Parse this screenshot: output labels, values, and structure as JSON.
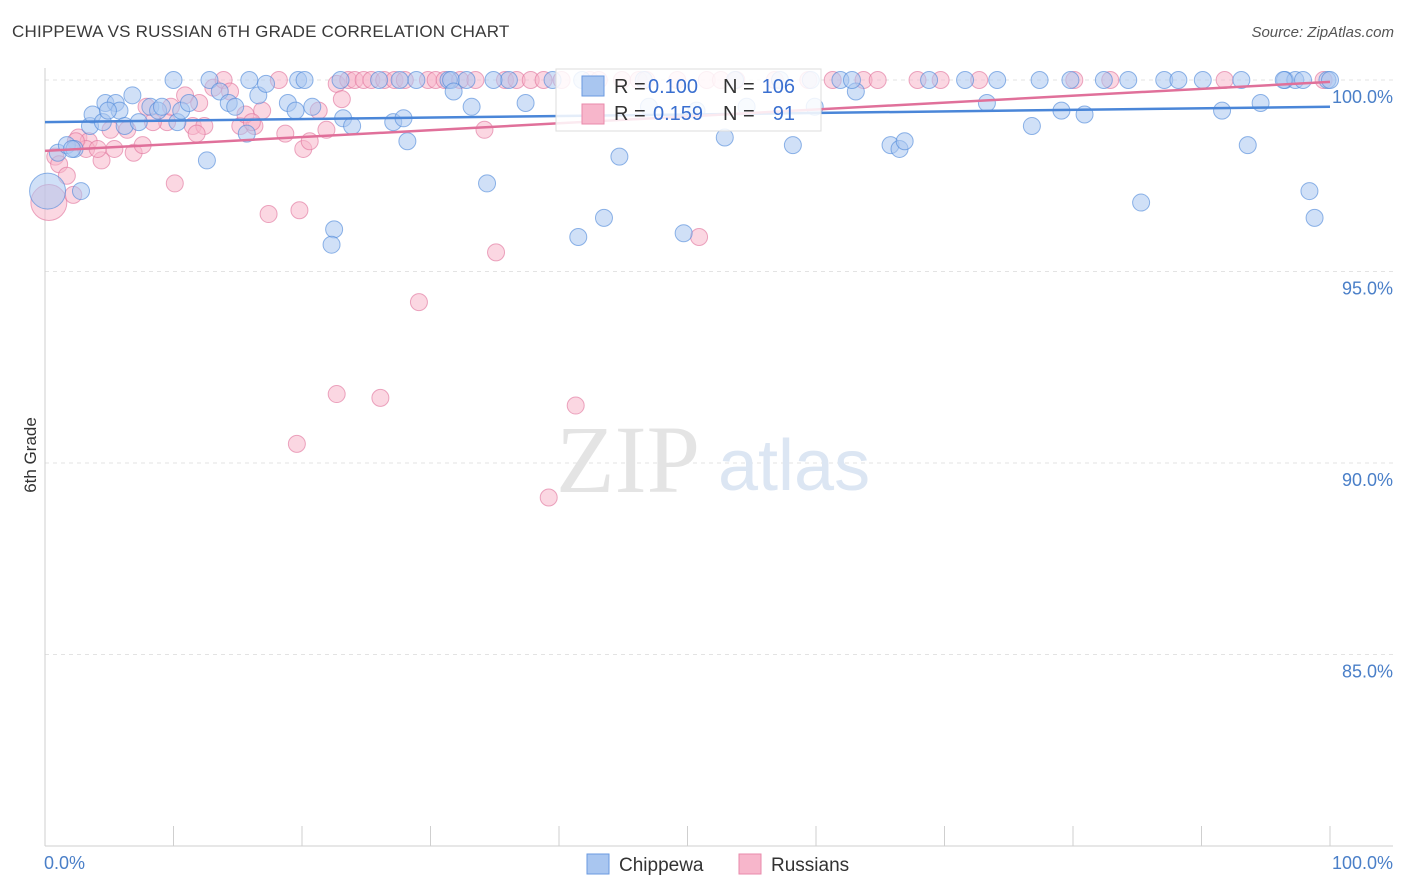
{
  "title": "CHIPPEWA VS RUSSIAN 6TH GRADE CORRELATION CHART",
  "source": "Source: ZipAtlas.com",
  "watermark": {
    "zip": "ZIP",
    "atlas": "atlas"
  },
  "legend_top": {
    "rows": [
      {
        "r_label": "R =",
        "r_value": "0.100",
        "n_label": "N =",
        "n_value": "106",
        "color": "#8fb4e8"
      },
      {
        "r_label": "R =",
        "r_value": "0.159",
        "n_label": "N =",
        "n_value": "91",
        "color": "#f4a8c0"
      }
    ]
  },
  "legend_bottom": [
    {
      "label": "Chippewa",
      "color": "#8fb4e8"
    },
    {
      "label": "Russians",
      "color": "#f4a8c0"
    }
  ],
  "chart_data": {
    "type": "scatter",
    "title": "CHIPPEWA VS RUSSIAN 6TH GRADE CORRELATION CHART",
    "xlabel": "",
    "ylabel": "6th Grade",
    "xlim": [
      0,
      100
    ],
    "ylim": [
      80.5,
      100.9
    ],
    "x_tick_labels": [
      "0.0%",
      "100.0%"
    ],
    "y_ticks": [
      85,
      90,
      95,
      100
    ],
    "y_tick_labels": [
      "85.0%",
      "90.0%",
      "95.0%",
      "100.0%"
    ],
    "grid": true,
    "series": [
      {
        "name": "Chippewa",
        "color": "#4a86d8",
        "fill": "#a9c6f0",
        "trend": {
          "x": [
            0,
            100
          ],
          "y": [
            98.9,
            99.3
          ]
        },
        "points": [
          [
            1,
            98.1
          ],
          [
            1.7,
            98.3
          ],
          [
            2.3,
            98.2
          ],
          [
            2.8,
            97.1
          ],
          [
            3.5,
            98.8
          ],
          [
            3.7,
            99.1
          ],
          [
            4.5,
            98.9
          ],
          [
            4.7,
            99.4
          ],
          [
            5.5,
            99.4
          ],
          [
            5.8,
            99.2
          ],
          [
            6.2,
            98.8
          ],
          [
            6.8,
            99.6
          ],
          [
            7.3,
            98.9
          ],
          [
            8.2,
            99.3
          ],
          [
            8.8,
            99.2
          ],
          [
            10,
            100
          ],
          [
            10.3,
            98.9
          ],
          [
            10.6,
            99.2
          ],
          [
            11.2,
            99.4
          ],
          [
            12.8,
            100
          ],
          [
            12.6,
            97.9
          ],
          [
            13.6,
            99.7
          ],
          [
            14.3,
            99.4
          ],
          [
            15.9,
            100
          ],
          [
            15.7,
            98.6
          ],
          [
            16.6,
            99.6
          ],
          [
            17.2,
            99.9
          ],
          [
            19.7,
            100
          ],
          [
            18.9,
            99.4
          ],
          [
            20.2,
            100
          ],
          [
            19.5,
            99.2
          ],
          [
            22.5,
            96.1
          ],
          [
            22.3,
            95.7
          ],
          [
            23,
            100
          ],
          [
            23.2,
            99
          ],
          [
            23.9,
            98.8
          ],
          [
            26,
            100
          ],
          [
            27.1,
            98.9
          ],
          [
            27.9,
            99
          ],
          [
            28.2,
            98.4
          ],
          [
            28.9,
            100
          ],
          [
            31.4,
            100
          ],
          [
            31.6,
            100
          ],
          [
            31.8,
            99.7
          ],
          [
            32.8,
            100
          ],
          [
            33.2,
            99.3
          ],
          [
            34.4,
            97.3
          ],
          [
            36.1,
            100
          ],
          [
            37.4,
            99.4
          ],
          [
            39.5,
            100
          ],
          [
            41.5,
            95.9
          ],
          [
            41.8,
            100
          ],
          [
            43.5,
            96.4
          ],
          [
            44.7,
            98
          ],
          [
            47,
            99.3
          ],
          [
            46.6,
            100
          ],
          [
            49.7,
            96
          ],
          [
            50.7,
            99.2
          ],
          [
            52.9,
            98.5
          ],
          [
            53.7,
            100
          ],
          [
            54.6,
            99.3
          ],
          [
            57.2,
            100
          ],
          [
            58.2,
            98.3
          ],
          [
            59.6,
            100
          ],
          [
            59.9,
            99.3
          ],
          [
            61.9,
            100
          ],
          [
            63.1,
            99.7
          ],
          [
            65.8,
            98.3
          ],
          [
            66.5,
            98.2
          ],
          [
            66.9,
            98.4
          ],
          [
            68.8,
            100
          ],
          [
            71.6,
            100
          ],
          [
            74.1,
            100
          ],
          [
            73.3,
            99.4
          ],
          [
            77.4,
            100
          ],
          [
            76.8,
            98.8
          ],
          [
            79.1,
            99.2
          ],
          [
            80.9,
            99.1
          ],
          [
            79.8,
            100
          ],
          [
            82.4,
            100
          ],
          [
            84.3,
            100
          ],
          [
            85.3,
            96.8
          ],
          [
            87.1,
            100
          ],
          [
            88.2,
            100
          ],
          [
            90.1,
            100
          ],
          [
            91.6,
            99.2
          ],
          [
            93.1,
            100
          ],
          [
            93.6,
            98.3
          ],
          [
            94.6,
            99.4
          ],
          [
            96.5,
            100
          ],
          [
            97.3,
            100
          ],
          [
            97.9,
            100
          ],
          [
            98.4,
            97.1
          ],
          [
            98.8,
            96.4
          ],
          [
            99.8,
            100
          ],
          [
            100,
            100
          ],
          [
            2.1,
            98.2
          ],
          [
            4.9,
            99.2
          ],
          [
            9.1,
            99.3
          ],
          [
            14.8,
            99.3
          ],
          [
            20.8,
            99.3
          ],
          [
            27.6,
            100
          ],
          [
            34.9,
            100
          ],
          [
            62.8,
            100
          ],
          [
            0.2,
            97.1
          ],
          [
            96.4,
            100
          ]
        ]
      },
      {
        "name": "Russians",
        "color": "#e0709a",
        "fill": "#f7b6cb",
        "trend": {
          "x": [
            0,
            100
          ],
          "y": [
            98.15,
            99.95
          ]
        },
        "points": [
          [
            0.3,
            96.8
          ],
          [
            0.8,
            98.0
          ],
          [
            1.1,
            97.8
          ],
          [
            1.7,
            97.5
          ],
          [
            2.2,
            97
          ],
          [
            2.6,
            98.5
          ],
          [
            3.4,
            98.4
          ],
          [
            3.2,
            98.2
          ],
          [
            4.4,
            97.9
          ],
          [
            5.1,
            98.7
          ],
          [
            5.4,
            98.2
          ],
          [
            6.4,
            98.7
          ],
          [
            6.9,
            98.1
          ],
          [
            7.6,
            98.3
          ],
          [
            7.9,
            99.3
          ],
          [
            9.5,
            98.9
          ],
          [
            10.1,
            97.3
          ],
          [
            10.9,
            99.6
          ],
          [
            11.5,
            98.8
          ],
          [
            12,
            99.4
          ],
          [
            12.4,
            98.8
          ],
          [
            13.1,
            99.8
          ],
          [
            13.9,
            100
          ],
          [
            14.4,
            99.7
          ],
          [
            15.2,
            98.8
          ],
          [
            16.3,
            98.8
          ],
          [
            16.9,
            99.2
          ],
          [
            17.4,
            96.5
          ],
          [
            18.2,
            100
          ],
          [
            18.7,
            98.6
          ],
          [
            19.8,
            96.6
          ],
          [
            20.1,
            98.2
          ],
          [
            20.6,
            98.4
          ],
          [
            21.3,
            99.2
          ],
          [
            21.9,
            98.7
          ],
          [
            22.7,
            99.9
          ],
          [
            23.1,
            99.5
          ],
          [
            23.6,
            100
          ],
          [
            24.1,
            100
          ],
          [
            24.8,
            100
          ],
          [
            25.4,
            100
          ],
          [
            26.4,
            100
          ],
          [
            27.2,
            100
          ],
          [
            28,
            100
          ],
          [
            29.1,
            94.2
          ],
          [
            29.8,
            100
          ],
          [
            30.4,
            100
          ],
          [
            31.1,
            100
          ],
          [
            32.3,
            100
          ],
          [
            33.5,
            100
          ],
          [
            34.2,
            98.7
          ],
          [
            35.1,
            95.5
          ],
          [
            35.8,
            100
          ],
          [
            36.7,
            100
          ],
          [
            37.8,
            100
          ],
          [
            38.8,
            100
          ],
          [
            40.2,
            100
          ],
          [
            42.4,
            100
          ],
          [
            43.1,
            100
          ],
          [
            44.9,
            100
          ],
          [
            46.2,
            100
          ],
          [
            46.8,
            100
          ],
          [
            49.2,
            100
          ],
          [
            50.9,
            95.9
          ],
          [
            51.5,
            100
          ],
          [
            52.6,
            100
          ],
          [
            53.8,
            100
          ],
          [
            56.8,
            100
          ],
          [
            59.4,
            100
          ],
          [
            61.3,
            100
          ],
          [
            63.7,
            100
          ],
          [
            64.8,
            100
          ],
          [
            67.9,
            100
          ],
          [
            69.7,
            100
          ],
          [
            72.7,
            100
          ],
          [
            80.1,
            100
          ],
          [
            82.9,
            100
          ],
          [
            91.8,
            100
          ],
          [
            99.5,
            100
          ],
          [
            22.7,
            91.8
          ],
          [
            26.1,
            91.7
          ],
          [
            19.6,
            90.5
          ],
          [
            41.3,
            91.5
          ],
          [
            39.2,
            89.1
          ],
          [
            15.6,
            99.1
          ],
          [
            16.1,
            98.9
          ],
          [
            8.4,
            98.9
          ],
          [
            9.8,
            99.3
          ],
          [
            11.8,
            98.6
          ],
          [
            4.1,
            98.2
          ],
          [
            2.4,
            98.4
          ]
        ]
      }
    ]
  }
}
